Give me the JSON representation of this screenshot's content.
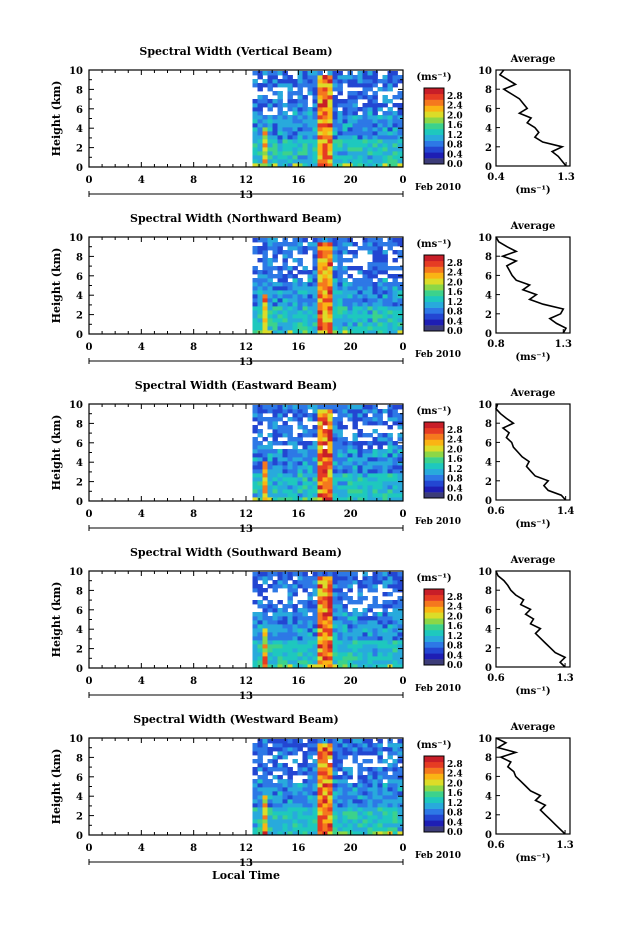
{
  "chart_data": [
    {
      "type": "heatmap",
      "title": "Spectral Width (Vertical Beam)",
      "ylabel": "Height (km)",
      "xticks": [
        "0",
        "4",
        "8",
        "12",
        "16",
        "20",
        "0"
      ],
      "xlim": [
        0,
        24
      ],
      "ylim": [
        0,
        10
      ],
      "yticks": [
        "0",
        "2",
        "4",
        "6",
        "8",
        "10"
      ],
      "date_mark": "13",
      "date_label": "Feb 2010",
      "data_start_hour": 12.5,
      "colorbar": {
        "unit": "(ms⁻¹)",
        "ticks": [
          "2.8",
          "2.4",
          "2.0",
          "1.6",
          "1.2",
          "0.8",
          "0.4",
          "0.0"
        ]
      },
      "average": {
        "title": "Average",
        "xlabel": "(ms⁻¹)",
        "xticks": [
          "0.4",
          "1.3"
        ],
        "xlim": [
          0.4,
          1.35
        ],
        "yticks": [
          "0",
          "2",
          "4",
          "6",
          "8",
          "10"
        ],
        "height_km": [
          0,
          0.5,
          1,
          1.5,
          2,
          2.5,
          3,
          3.5,
          4,
          4.5,
          5,
          5.5,
          6,
          6.5,
          7,
          7.5,
          8,
          8.5,
          9,
          9.5,
          10
        ],
        "width": [
          1.3,
          1.25,
          1.2,
          1.12,
          1.25,
          1.0,
          0.9,
          0.95,
          0.9,
          0.8,
          0.85,
          0.7,
          0.8,
          0.75,
          0.7,
          0.6,
          0.5,
          0.65,
          0.55,
          0.45,
          0.5
        ]
      }
    },
    {
      "type": "heatmap",
      "title": "Spectral Width (Northward Beam)",
      "ylabel": "Height (km)",
      "xticks": [
        "0",
        "4",
        "8",
        "12",
        "16",
        "20",
        "0"
      ],
      "xlim": [
        0,
        24
      ],
      "ylim": [
        0,
        10
      ],
      "yticks": [
        "0",
        "2",
        "4",
        "6",
        "8",
        "10"
      ],
      "date_mark": "13",
      "date_label": "Feb 2010",
      "data_start_hour": 12.5,
      "colorbar": {
        "unit": "(ms⁻¹)",
        "ticks": [
          "2.8",
          "2.4",
          "2.0",
          "1.6",
          "1.2",
          "0.8",
          "0.4",
          "0.0"
        ]
      },
      "average": {
        "title": "Average",
        "xlabel": "(ms⁻¹)",
        "xticks": [
          "0.8",
          "1.3"
        ],
        "xlim": [
          0.8,
          1.35
        ],
        "yticks": [
          "0",
          "2",
          "4",
          "6",
          "8",
          "10"
        ],
        "height_km": [
          0,
          0.5,
          1,
          1.5,
          2,
          2.5,
          3,
          3.5,
          4,
          4.5,
          5,
          5.5,
          6,
          6.5,
          7,
          7.5,
          8,
          8.5,
          9,
          9.5,
          10
        ],
        "width": [
          1.3,
          1.32,
          1.25,
          1.2,
          1.28,
          1.3,
          1.15,
          1.05,
          1.1,
          1.0,
          1.05,
          0.95,
          0.92,
          0.9,
          0.88,
          0.95,
          0.85,
          0.95,
          0.88,
          0.82,
          0.8
        ]
      }
    },
    {
      "type": "heatmap",
      "title": "Spectral Width (Eastward Beam)",
      "ylabel": "Height (km)",
      "xticks": [
        "0",
        "4",
        "8",
        "12",
        "16",
        "20",
        "0"
      ],
      "xlim": [
        0,
        24
      ],
      "ylim": [
        0,
        10
      ],
      "yticks": [
        "0",
        "2",
        "4",
        "6",
        "8",
        "10"
      ],
      "date_mark": "13",
      "date_label": "Feb 2010",
      "data_start_hour": 12.5,
      "colorbar": {
        "unit": "(ms⁻¹)",
        "ticks": [
          "2.8",
          "2.4",
          "2.0",
          "1.6",
          "1.2",
          "0.8",
          "0.4",
          "0.0"
        ]
      },
      "average": {
        "title": "Average",
        "xlabel": "(ms⁻¹)",
        "xticks": [
          "0.6",
          "1.4"
        ],
        "xlim": [
          0.6,
          1.45
        ],
        "yticks": [
          "0",
          "2",
          "4",
          "6",
          "8",
          "10"
        ],
        "height_km": [
          0,
          0.5,
          1,
          1.5,
          2,
          2.5,
          3,
          3.5,
          4,
          4.5,
          5,
          5.5,
          6,
          6.5,
          7,
          7.5,
          8,
          8.5,
          9,
          9.5,
          10
        ],
        "width": [
          1.4,
          1.35,
          1.2,
          1.15,
          1.2,
          1.05,
          1.0,
          0.95,
          0.98,
          0.9,
          0.85,
          0.8,
          0.78,
          0.72,
          0.75,
          0.68,
          0.8,
          0.72,
          0.65,
          0.6,
          0.62
        ]
      }
    },
    {
      "type": "heatmap",
      "title": "Spectral Width (Southward Beam)",
      "ylabel": "Height (km)",
      "xticks": [
        "0",
        "4",
        "8",
        "12",
        "16",
        "20",
        "0"
      ],
      "xlim": [
        0,
        24
      ],
      "ylim": [
        0,
        10
      ],
      "yticks": [
        "0",
        "2",
        "4",
        "6",
        "8",
        "10"
      ],
      "date_mark": "13",
      "date_label": "Feb 2010",
      "data_start_hour": 12.5,
      "colorbar": {
        "unit": "(ms⁻¹)",
        "ticks": [
          "2.8",
          "2.4",
          "2.0",
          "1.6",
          "1.2",
          "0.8",
          "0.4",
          "0.0"
        ]
      },
      "average": {
        "title": "Average",
        "xlabel": "(ms⁻¹)",
        "xticks": [
          "0.6",
          "1.3"
        ],
        "xlim": [
          0.6,
          1.35
        ],
        "yticks": [
          "0",
          "2",
          "4",
          "6",
          "8",
          "10"
        ],
        "height_km": [
          0,
          0.5,
          1,
          1.5,
          2,
          2.5,
          3,
          3.5,
          4,
          4.5,
          5,
          5.5,
          6,
          6.5,
          7,
          7.5,
          8,
          8.5,
          9,
          9.5,
          10
        ],
        "width": [
          1.3,
          1.25,
          1.3,
          1.2,
          1.15,
          1.1,
          1.05,
          1.0,
          1.05,
          0.95,
          0.98,
          0.9,
          0.95,
          0.85,
          0.88,
          0.8,
          0.75,
          0.72,
          0.68,
          0.62,
          0.6
        ]
      }
    },
    {
      "type": "heatmap",
      "title": "Spectral Width (Westward Beam)",
      "ylabel": "Height (km)",
      "xticks": [
        "0",
        "4",
        "8",
        "12",
        "16",
        "20",
        "0"
      ],
      "xlim": [
        0,
        24
      ],
      "ylim": [
        0,
        10
      ],
      "yticks": [
        "0",
        "2",
        "4",
        "6",
        "8",
        "10"
      ],
      "date_mark": "13",
      "date_label": "Feb 2010",
      "data_start_hour": 12.5,
      "colorbar": {
        "unit": "(ms⁻¹)",
        "ticks": [
          "2.8",
          "2.4",
          "2.0",
          "1.6",
          "1.2",
          "0.8",
          "0.4",
          "0.0"
        ]
      },
      "average": {
        "title": "Average",
        "xlabel": "(ms⁻¹)",
        "xticks": [
          "0.6",
          "1.3"
        ],
        "xlim": [
          0.6,
          1.35
        ],
        "yticks": [
          "0",
          "2",
          "4",
          "6",
          "8",
          "10"
        ],
        "height_km": [
          0,
          0.5,
          1,
          1.5,
          2,
          2.5,
          3,
          3.5,
          4,
          4.5,
          5,
          5.5,
          6,
          6.5,
          7,
          7.5,
          8,
          8.5,
          9,
          9.5,
          10
        ],
        "width": [
          1.3,
          1.25,
          1.2,
          1.15,
          1.1,
          1.05,
          1.1,
          1.0,
          1.05,
          0.95,
          0.9,
          0.85,
          0.8,
          0.78,
          0.72,
          0.75,
          0.65,
          0.8,
          0.62,
          0.7,
          0.6
        ]
      }
    }
  ],
  "xlabel_bottom": "Local Time",
  "colors": {
    "colorscale": [
      "#3c3c78",
      "#1e1eb4",
      "#2346d2",
      "#2d78e6",
      "#28aadc",
      "#1ec8be",
      "#3cd28c",
      "#8cd746",
      "#dcdc28",
      "#fab414",
      "#f5781e",
      "#e63c23",
      "#c81e28"
    ]
  }
}
